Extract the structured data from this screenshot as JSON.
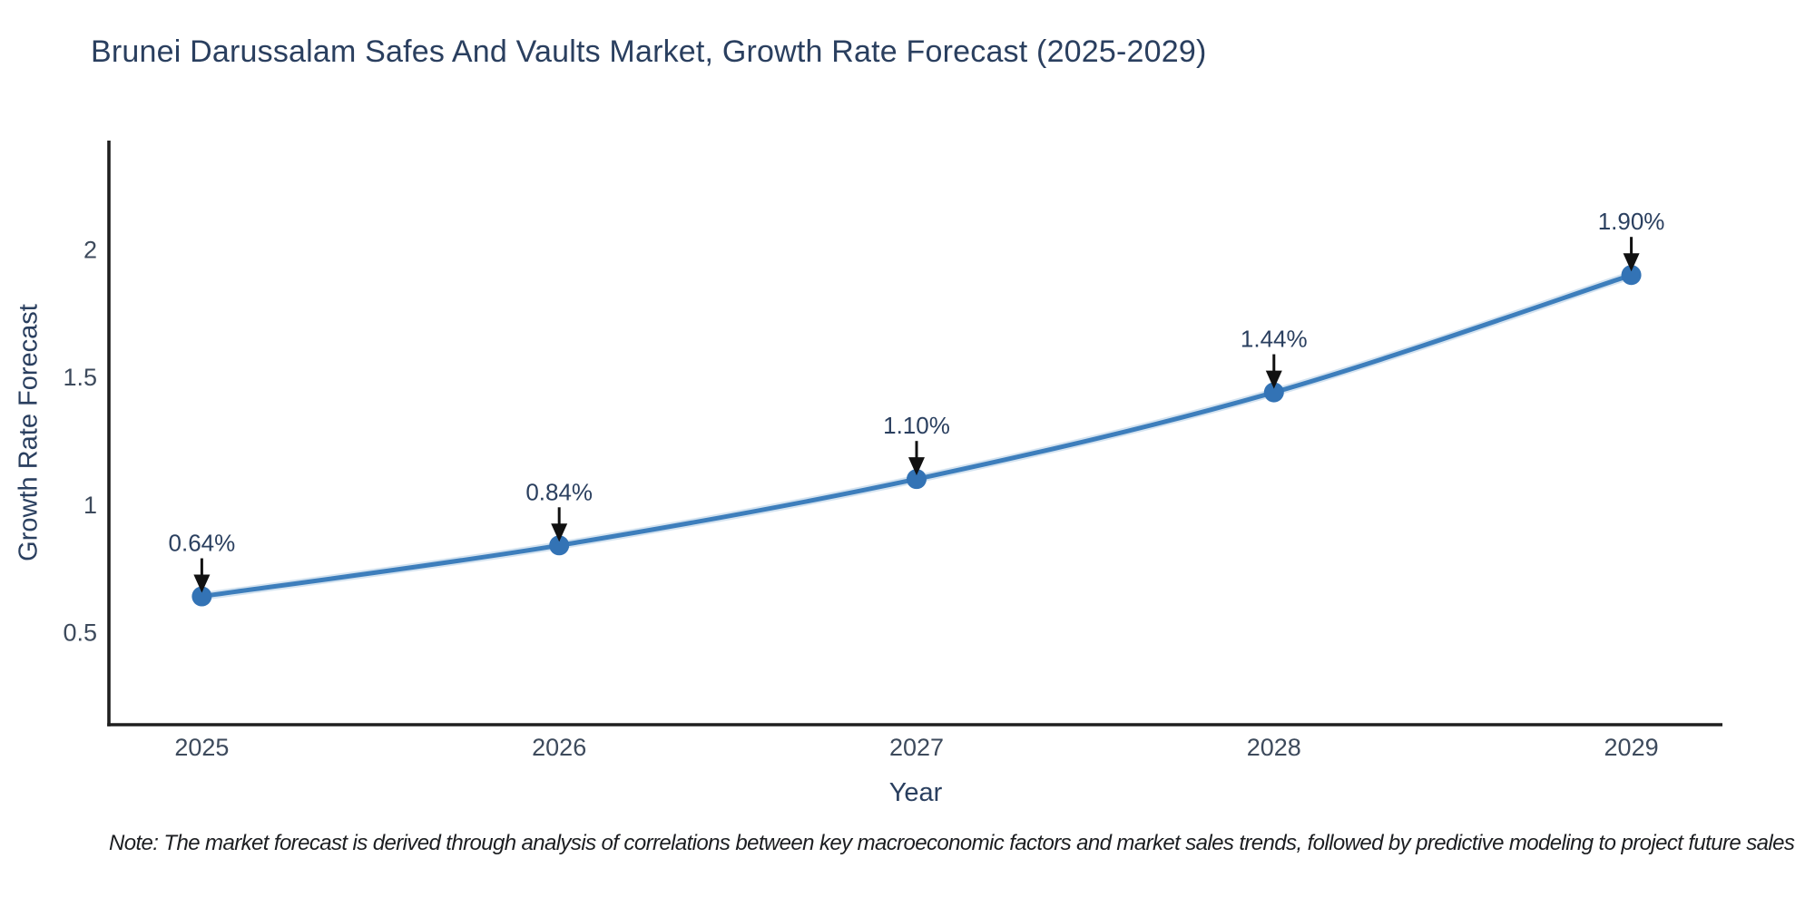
{
  "title": "Brunei Darussalam Safes And Vaults Market, Growth Rate Forecast (2025-2029)",
  "note": "Note: The market forecast is derived through analysis of correlations between key macroeconomic factors and market sales trends, followed by predictive modeling to project future sales",
  "chart_data": {
    "type": "line",
    "title": "Brunei Darussalam Safes And Vaults Market, Growth Rate Forecast (2025-2029)",
    "xlabel": "Year",
    "ylabel": "Growth Rate Forecast",
    "x": [
      2025,
      2026,
      2027,
      2028,
      2029
    ],
    "values": [
      0.64,
      0.84,
      1.1,
      1.44,
      1.9
    ],
    "point_labels": [
      "0.64%",
      "0.84%",
      "1.10%",
      "1.44%",
      "1.90%"
    ],
    "xtick_labels": [
      "2025",
      "2026",
      "2027",
      "2028",
      "2029"
    ],
    "ytick_values": [
      0.5,
      1,
      1.5,
      2
    ],
    "ytick_labels": [
      "0.5",
      "1",
      "1.5",
      "2"
    ],
    "xlim": [
      2024.74,
      2029.255
    ],
    "ylim": [
      0.137,
      2.427
    ],
    "grid": false,
    "legend": "none",
    "smoothing": "spline",
    "colors": {
      "line": "#3d7ebc",
      "line_halo": "rgba(61,126,188,0.22)",
      "marker": "#3373b5",
      "axis": "#1f1f1f",
      "tick_text": "#3d4a5c",
      "annotation_text": "#2a3f5f",
      "arrow": "#111111"
    }
  }
}
